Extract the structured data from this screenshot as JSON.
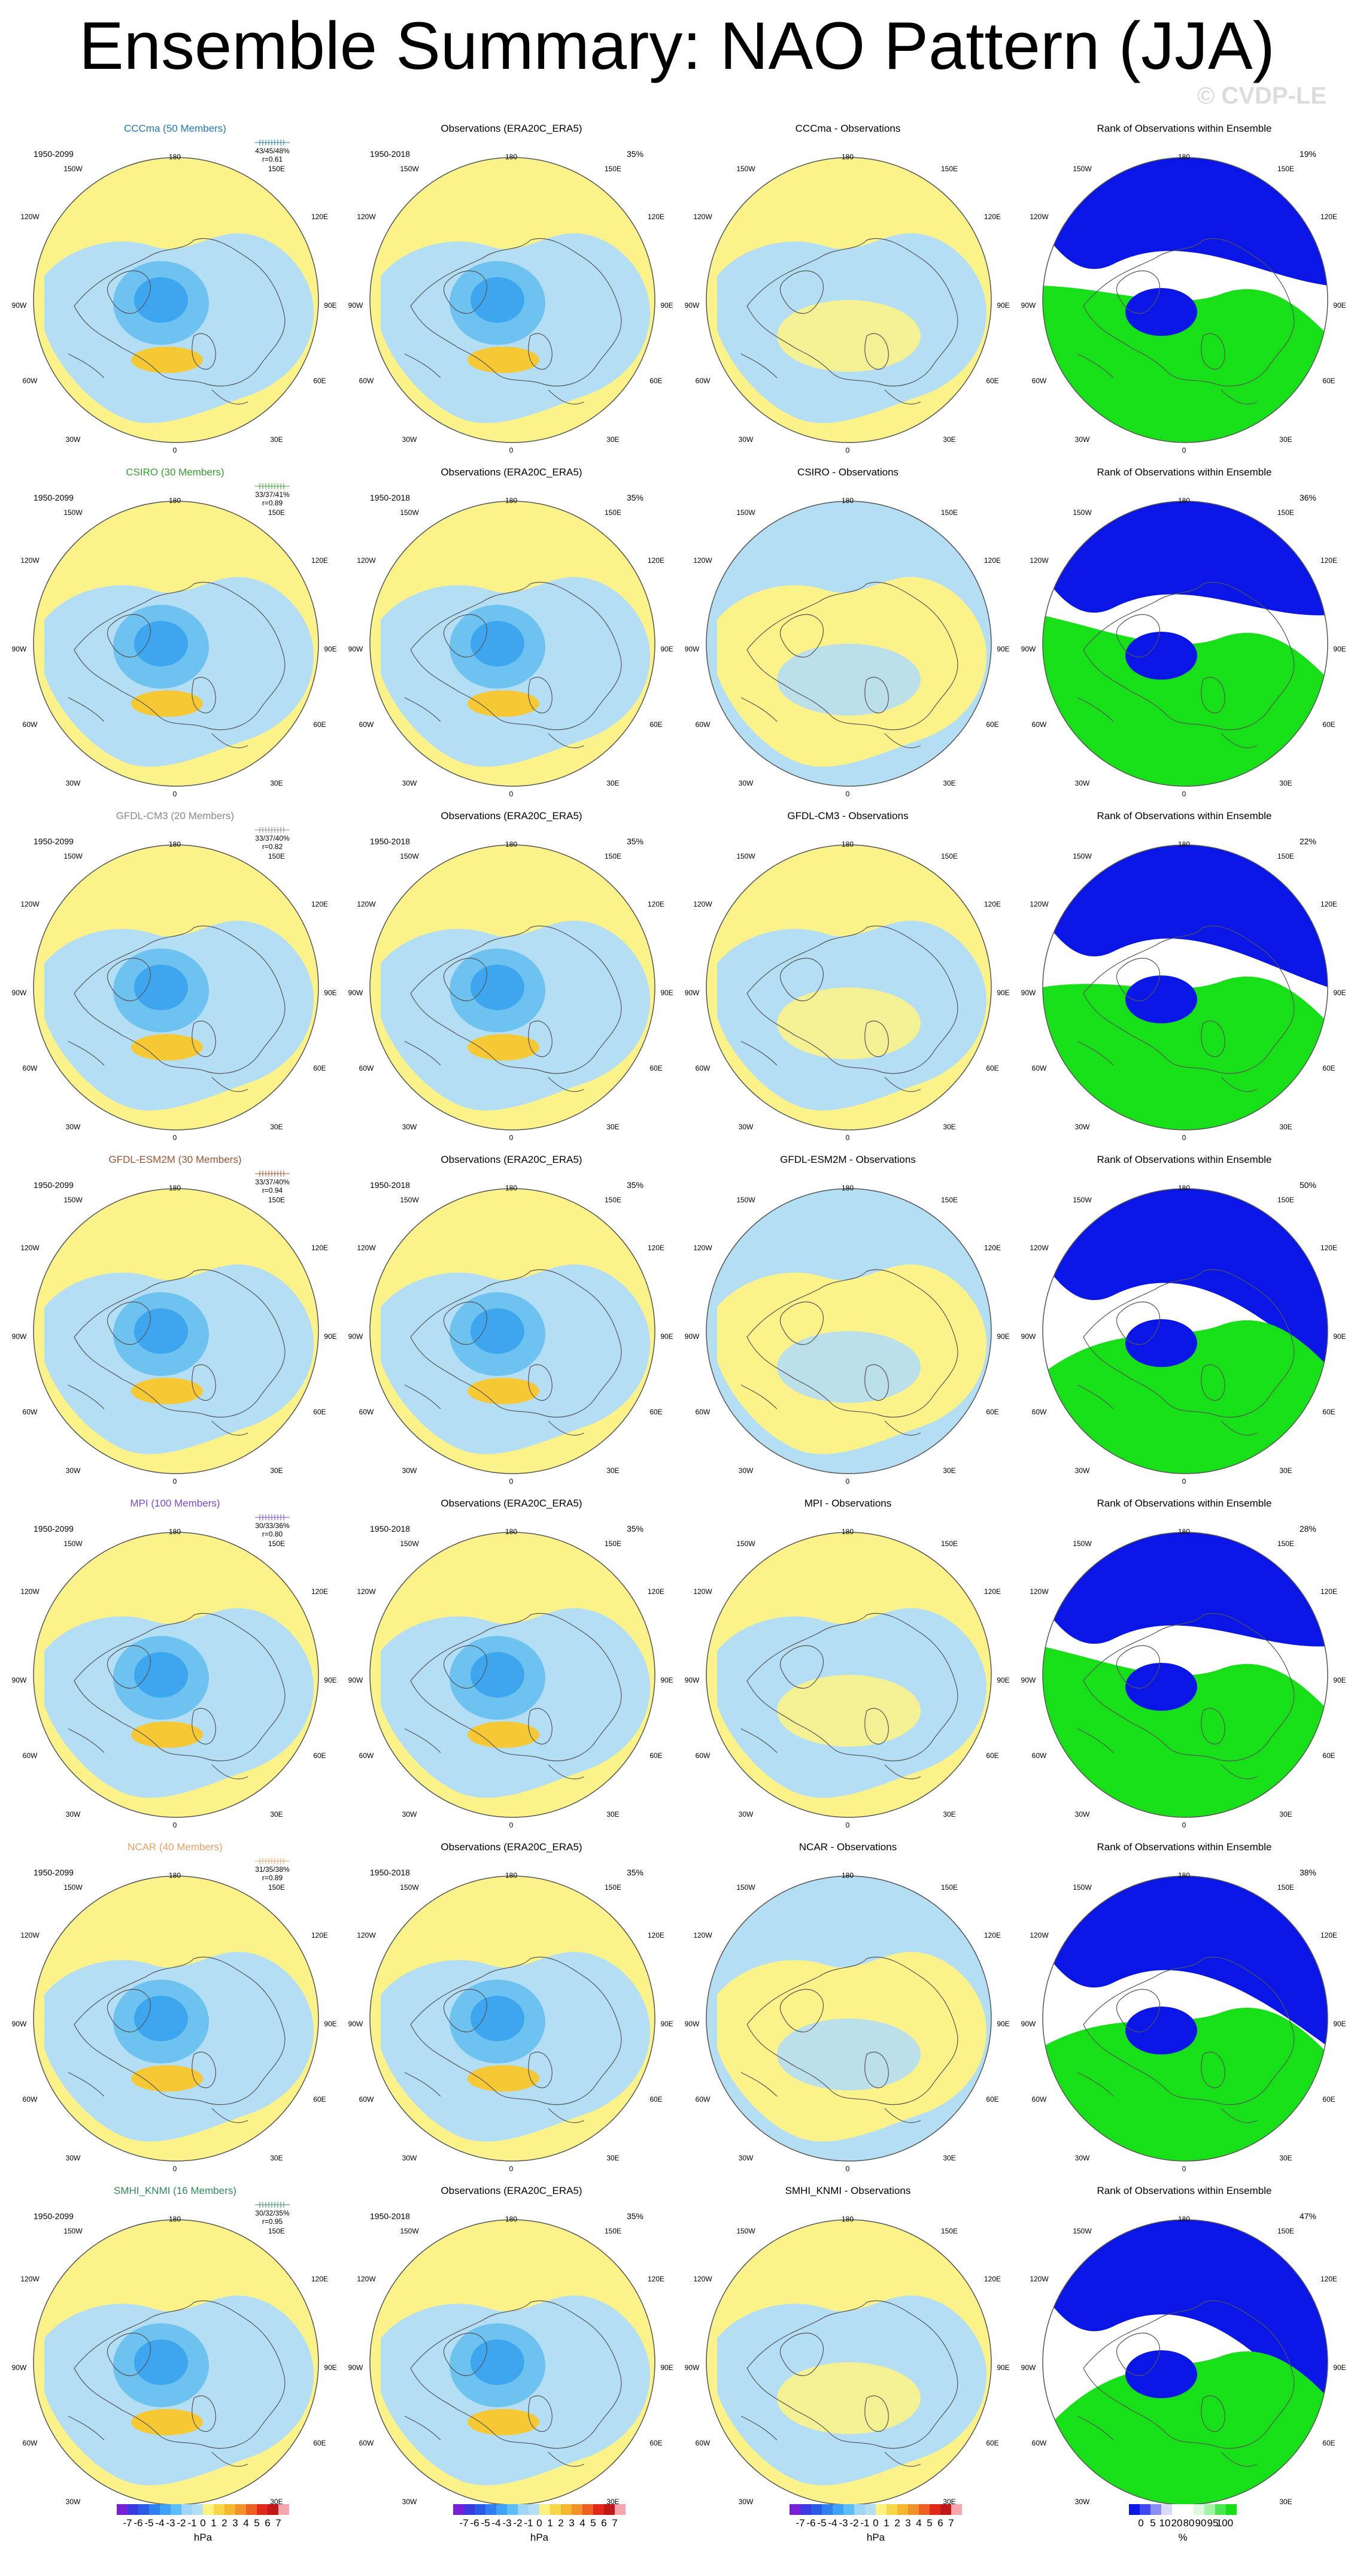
{
  "title": "Ensemble Summary: NAO Pattern (JJA)",
  "watermark": "© CVDP-LE",
  "geo_labels": {
    "top": "180",
    "bottom": "0",
    "left": "90W",
    "right": "90E",
    "ul": "150W",
    "ur": "150E",
    "ml": "120W",
    "mr": "120E",
    "ll": "60W",
    "lr": "60E",
    "bl": "30W",
    "br": "30E"
  },
  "rows": [
    {
      "model": "CCCma (50 Members)",
      "model_color": "#1f78b4",
      "period": "1950-2099",
      "stats": "43/45/48%",
      "r": "r=0.61",
      "obs_title": "Observations (ERA20C_ERA5)",
      "obs_period": "1950-2018",
      "obs_pct": "35%",
      "diff_title": "CCCma - Observations",
      "rank_title": "Rank of Observations within Ensemble",
      "rank_pct": "19%",
      "rank_green": 0.55
    },
    {
      "model": "CSIRO (30 Members)",
      "model_color": "#33a02c",
      "period": "1950-2099",
      "stats": "33/37/41%",
      "r": "r=0.89",
      "obs_title": "Observations (ERA20C_ERA5)",
      "obs_period": "1950-2018",
      "obs_pct": "35%",
      "diff_title": "CSIRO - Observations",
      "rank_title": "Rank of Observations within Ensemble",
      "rank_pct": "36%",
      "rank_green": 0.6
    },
    {
      "model": "GFDL-CM3 (20 Members)",
      "model_color": "#888888",
      "period": "1950-2099",
      "stats": "33/37/40%",
      "r": "r=0.82",
      "obs_title": "Observations (ERA20C_ERA5)",
      "obs_period": "1950-2018",
      "obs_pct": "35%",
      "diff_title": "GFDL-CM3 - Observations",
      "rank_title": "Rank of Observations within Ensemble",
      "rank_pct": "22%",
      "rank_green": 0.5
    },
    {
      "model": "GFDL-ESM2M (30 Members)",
      "model_color": "#a0522d",
      "period": "1950-2099",
      "stats": "33/37/40%",
      "r": "r=0.94",
      "obs_title": "Observations (ERA20C_ERA5)",
      "obs_period": "1950-2018",
      "obs_pct": "35%",
      "diff_title": "GFDL-ESM2M - Observations",
      "rank_title": "Rank of Observations within Ensemble",
      "rank_pct": "50%",
      "rank_green": 0.35
    },
    {
      "model": "MPI (100 Members)",
      "model_color": "#7b48d6",
      "period": "1950-2099",
      "stats": "30/33/36%",
      "r": "r=0.80",
      "obs_title": "Observations (ERA20C_ERA5)",
      "obs_period": "1950-2018",
      "obs_pct": "35%",
      "diff_title": "MPI - Observations",
      "rank_title": "Rank of Observations within Ensemble",
      "rank_pct": "28%",
      "rank_green": 0.6
    },
    {
      "model": "NCAR (40 Members)",
      "model_color": "#e8a060",
      "period": "1950-2099",
      "stats": "31/35/38%",
      "r": "r=0.89",
      "obs_title": "Observations (ERA20C_ERA5)",
      "obs_period": "1950-2018",
      "obs_pct": "35%",
      "diff_title": "NCAR - Observations",
      "rank_title": "Rank of Observations within Ensemble",
      "rank_pct": "38%",
      "rank_green": 0.4
    },
    {
      "model": "SMHI_KNMI (16 Members)",
      "model_color": "#2e8b57",
      "period": "1950-2099",
      "stats": "30/32/35%",
      "r": "r=0.95",
      "obs_title": "Observations (ERA20C_ERA5)",
      "obs_period": "1950-2018",
      "obs_pct": "35%",
      "diff_title": "SMHI_KNMI - Observations",
      "rank_title": "Rank of Observations within Ensemble",
      "rank_pct": "47%",
      "rank_green": 0.25
    }
  ],
  "colorbar_hpa": {
    "ticks": [
      "-7",
      "-6",
      "-5",
      "-4",
      "-3",
      "-2",
      "-1",
      "0",
      "1",
      "2",
      "3",
      "4",
      "5",
      "6",
      "7"
    ],
    "unit": "hPa",
    "colors": [
      "#7a1fd8",
      "#3b39e0",
      "#2a5be6",
      "#2f7ff0",
      "#3fa1f5",
      "#5dbdf7",
      "#9fd5f5",
      "#b4def4",
      "#fbf27f",
      "#f8d64a",
      "#f6b730",
      "#f3922a",
      "#ee5f22",
      "#e0281b",
      "#c0181a",
      "#f6a7ae"
    ]
  },
  "colorbar_rank": {
    "ticks": [
      "0",
      "5",
      "10",
      "20",
      "80",
      "90",
      "95",
      "100"
    ],
    "unit": "%",
    "colors": [
      "#0a16e6",
      "#4048ef",
      "#8a8ef3",
      "#d9dafb",
      "#ffffff",
      "#ffffff",
      "#ddf8dd",
      "#a4f2a6",
      "#4ee552",
      "#14e014"
    ]
  },
  "palette": {
    "blue_light": "#b4def4",
    "blue_mid": "#6dc2f0",
    "blue_dark": "#3ea6ef",
    "yellow": "#fbf38a",
    "orange": "#f6c934",
    "rank_blue": "#0a16e6",
    "rank_green": "#18e018"
  }
}
